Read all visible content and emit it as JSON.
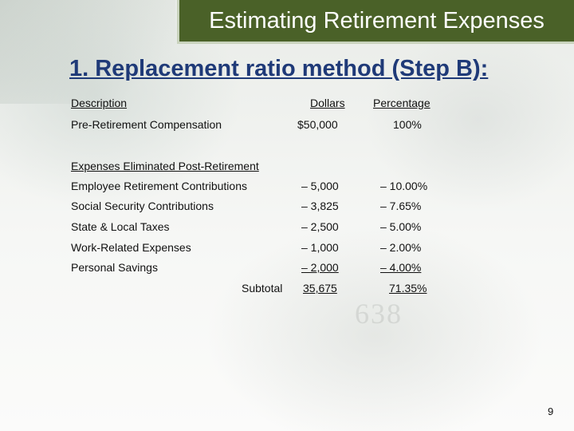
{
  "title": "Estimating Retirement Expenses",
  "heading": "1. Replacement ratio method (Step B):",
  "columns": {
    "description": "Description",
    "dollars": "Dollars",
    "percentage": "Percentage"
  },
  "pre_retirement": {
    "label": "Pre-Retirement Compensation",
    "dollars": "$50,000",
    "percentage": "100%"
  },
  "section_heading": "Expenses Eliminated Post-Retirement",
  "rows": [
    {
      "label": "Employee Retirement Contributions",
      "dollars": "– 5,000",
      "percentage": "– 10.00%"
    },
    {
      "label": "Social Security Contributions",
      "dollars": "– 3,825",
      "percentage": "– 7.65%"
    },
    {
      "label": "State & Local Taxes",
      "dollars": "– 2,500",
      "percentage": "– 5.00%"
    },
    {
      "label": "Work-Related Expenses",
      "dollars": "– 1,000",
      "percentage": "– 2.00%"
    },
    {
      "label": "Personal Savings",
      "dollars": "– 2,000",
      "percentage": "– 4.00%"
    }
  ],
  "subtotal": {
    "label": "Subtotal",
    "dollars": "35,675",
    "percentage": "71.35%"
  },
  "page_number": "9"
}
